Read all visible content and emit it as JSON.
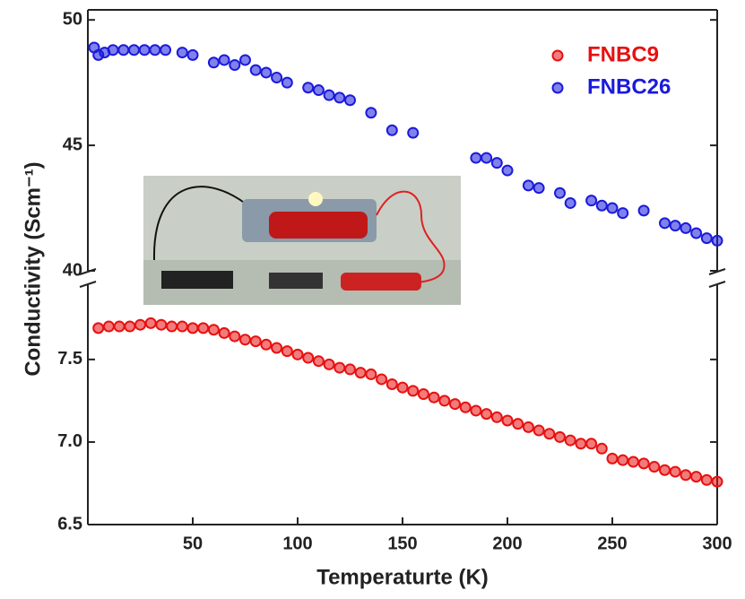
{
  "chart_data": [
    {
      "type": "scatter",
      "ylabel": "Conductivity (Scm⁻¹)",
      "series": [
        {
          "name": "FNBC26",
          "color": "#1a1adc",
          "x": [
            3,
            5,
            8,
            12,
            17,
            22,
            27,
            32,
            37,
            45,
            50,
            60,
            65,
            70,
            75,
            80,
            85,
            90,
            95,
            105,
            110,
            115,
            120,
            125,
            135,
            145,
            155,
            185,
            190,
            195,
            200,
            210,
            215,
            225,
            230,
            240,
            245,
            250,
            255,
            265,
            275,
            280,
            285,
            290,
            295,
            300
          ],
          "values": [
            48.9,
            48.6,
            48.7,
            48.8,
            48.8,
            48.8,
            48.8,
            48.8,
            48.8,
            48.7,
            48.6,
            48.3,
            48.4,
            48.2,
            48.4,
            48.0,
            47.9,
            47.7,
            47.5,
            47.3,
            47.2,
            47.0,
            46.9,
            46.8,
            46.3,
            45.6,
            45.5,
            44.5,
            44.5,
            44.3,
            44.0,
            43.4,
            43.3,
            43.1,
            42.7,
            42.8,
            42.6,
            42.5,
            42.3,
            42.4,
            41.9,
            41.8,
            41.7,
            41.5,
            41.3,
            41.2
          ]
        }
      ],
      "ylim": [
        40,
        50.4
      ],
      "yticks": [
        40,
        45,
        50
      ]
    },
    {
      "type": "scatter",
      "xlabel": "Temperaturte (K)",
      "series": [
        {
          "name": "FNBC9",
          "color": "#e81010",
          "x": [
            5,
            10,
            15,
            20,
            25,
            30,
            35,
            40,
            45,
            50,
            55,
            60,
            65,
            70,
            75,
            80,
            85,
            90,
            95,
            100,
            105,
            110,
            115,
            120,
            125,
            130,
            135,
            140,
            145,
            150,
            155,
            160,
            165,
            170,
            175,
            180,
            185,
            190,
            195,
            200,
            205,
            210,
            215,
            220,
            225,
            230,
            235,
            240,
            245,
            250,
            255,
            260,
            265,
            270,
            275,
            280,
            285,
            290,
            295,
            300
          ],
          "values": [
            7.69,
            7.7,
            7.7,
            7.7,
            7.71,
            7.72,
            7.71,
            7.7,
            7.7,
            7.69,
            7.69,
            7.68,
            7.66,
            7.64,
            7.62,
            7.61,
            7.59,
            7.57,
            7.55,
            7.53,
            7.51,
            7.49,
            7.47,
            7.45,
            7.44,
            7.42,
            7.41,
            7.38,
            7.35,
            7.33,
            7.31,
            7.29,
            7.27,
            7.25,
            7.23,
            7.21,
            7.19,
            7.17,
            7.15,
            7.13,
            7.11,
            7.09,
            7.07,
            7.05,
            7.03,
            7.01,
            6.99,
            6.99,
            6.96,
            6.9,
            6.89,
            6.88,
            6.87,
            6.85,
            6.83,
            6.82,
            6.8,
            6.79,
            6.77,
            6.76
          ]
        }
      ],
      "xlim": [
        0,
        300
      ],
      "xticks": [
        50,
        100,
        150,
        200,
        250,
        300
      ],
      "ylim": [
        6.5,
        7.95
      ],
      "yticks": [
        6.5,
        {
          "value": 7.0,
          "label": "7.0"
        },
        7.5
      ]
    }
  ]
}
